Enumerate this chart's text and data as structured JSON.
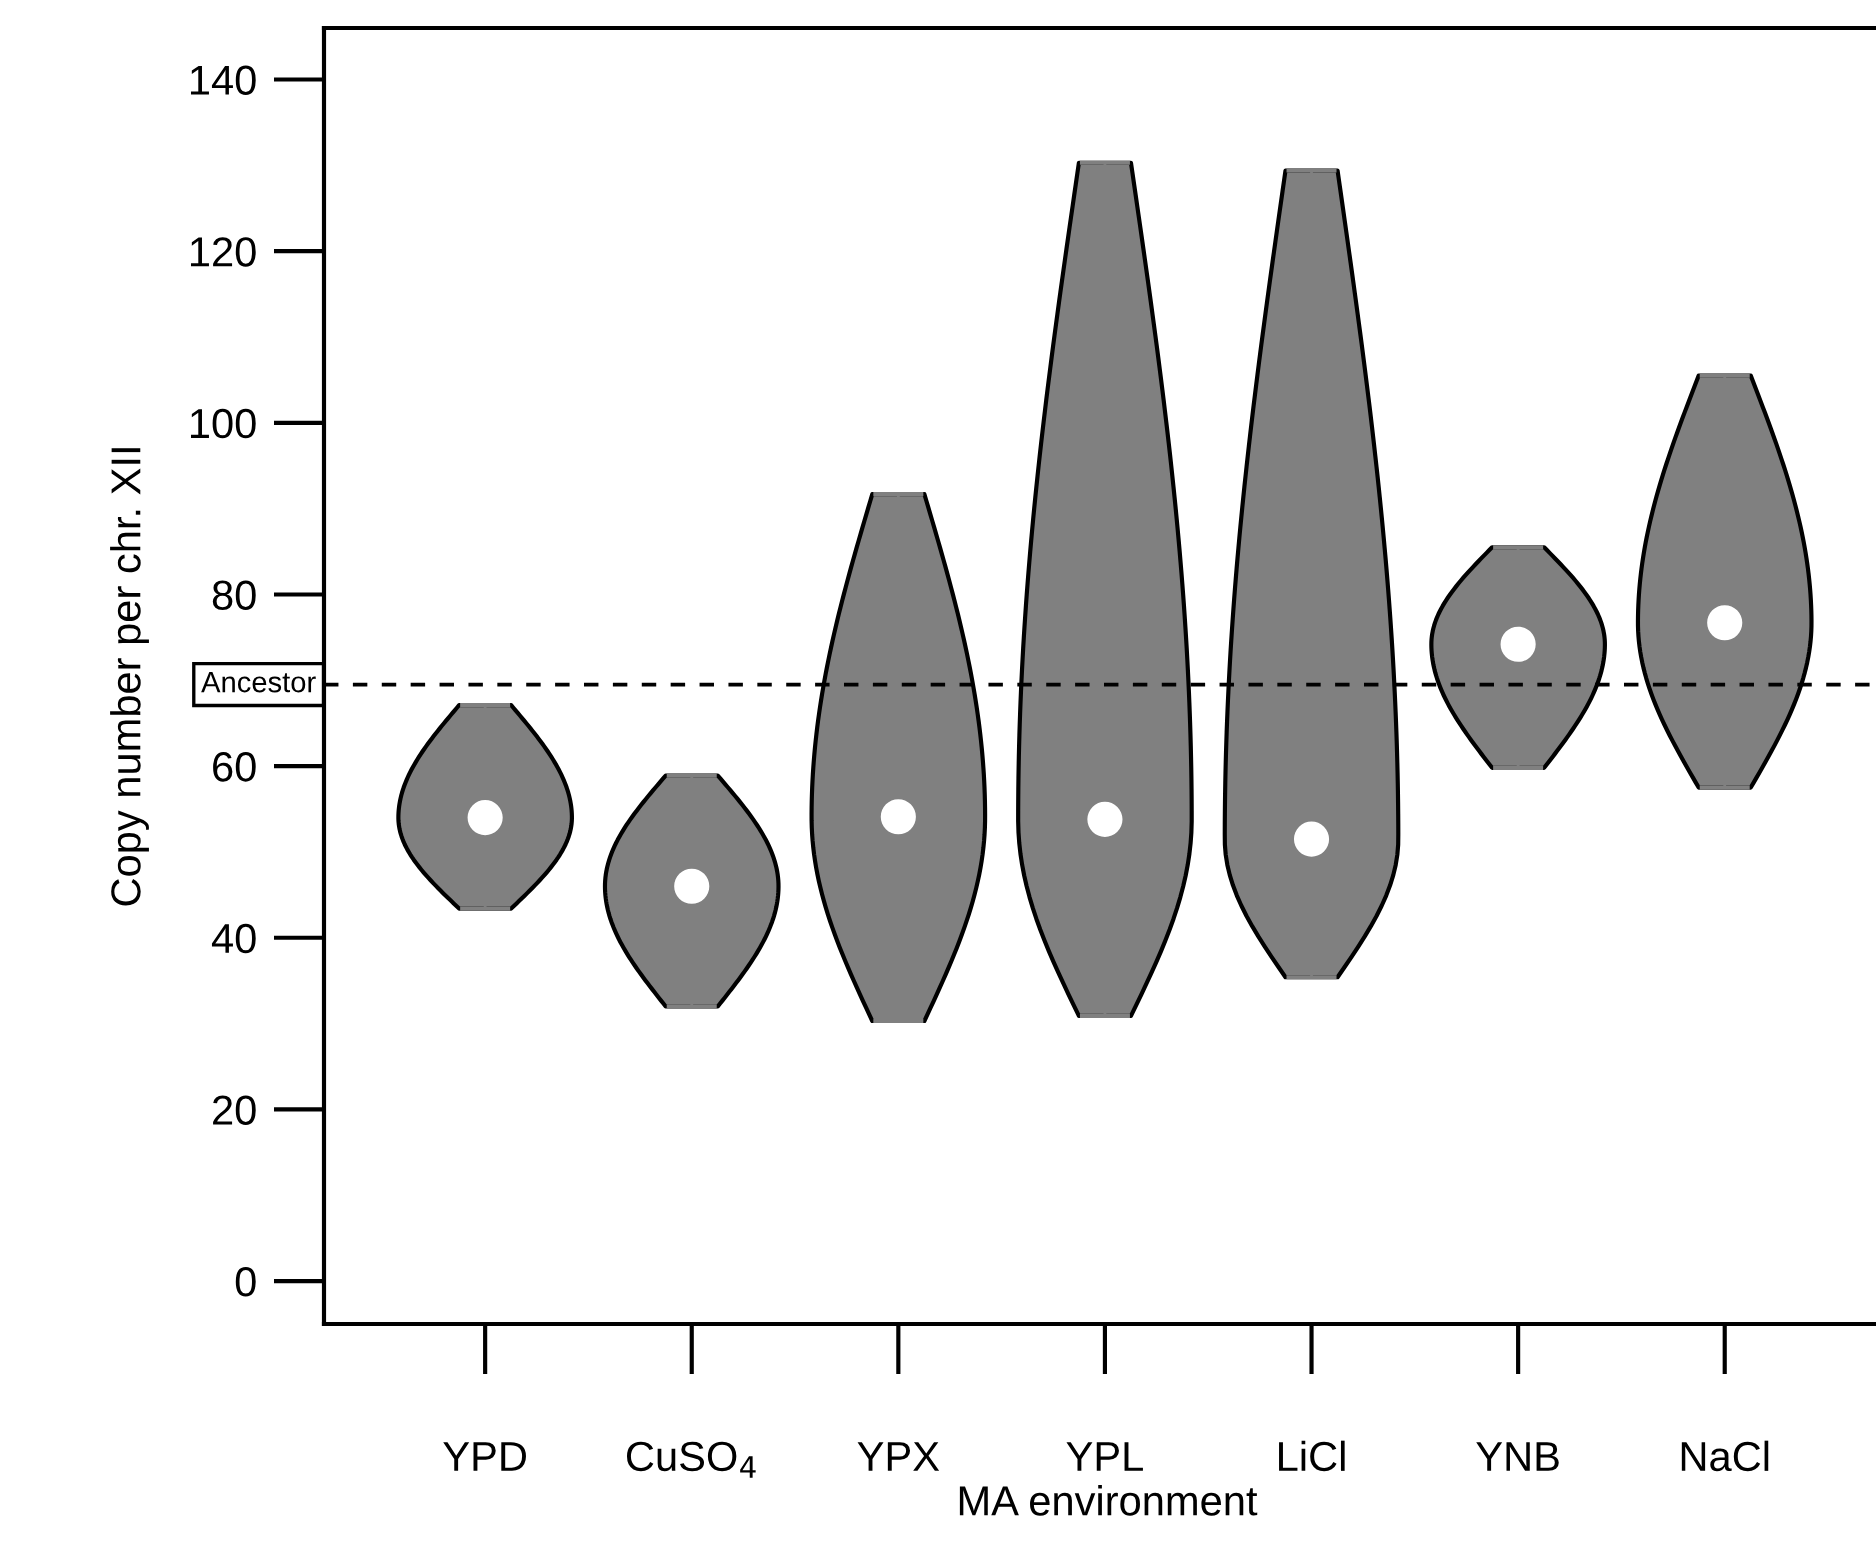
{
  "chart_data": {
    "type": "scatter",
    "xlabel": "MA environment",
    "ylabel": "Copy number per chr. XII",
    "categories": [
      "YPD",
      "CuSO$_{4}$",
      "YPX",
      "YPL",
      "LiCl",
      "YNB",
      "NaCl"
    ],
    "series": [
      {
        "color": "#ffffff",
        "values": [
          54.0,
          46.0,
          54.1,
          53.8,
          51.5,
          74.2,
          76.7
        ],
        "errors": [
          [
            43.4,
            67.1
          ],
          [
            32.0,
            58.9
          ],
          [
            30.3,
            91.7
          ],
          [
            30.9,
            130.3
          ],
          [
            35.4,
            129.4
          ],
          [
            59.8,
            85.5
          ],
          [
            57.5,
            105.5
          ]
        ]
      }
    ],
    "ylim": [
      -5,
      146
    ],
    "yticks": [
      0,
      20,
      40,
      60,
      80,
      100,
      120,
      140
    ],
    "grid": false,
    "legend": false,
    "marker": "circle",
    "ref_lines": [
      {
        "axis": "y",
        "value": 69.5,
        "label": "Ancestor",
        "color": "#000000",
        "line_style": "dashed"
      }
    ]
  }
}
